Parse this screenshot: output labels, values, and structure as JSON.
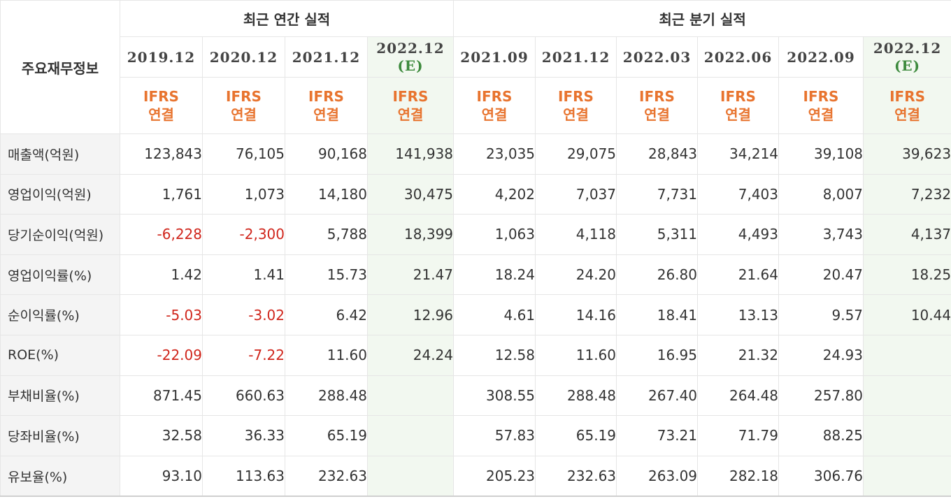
{
  "table": {
    "row_header_label": "주요재무정보",
    "groups": [
      {
        "label": "최근 연간 실적",
        "span": 4
      },
      {
        "label": "최근 분기 실적",
        "span": 6
      }
    ],
    "periods": [
      {
        "date": "2019.12",
        "estimate": false
      },
      {
        "date": "2020.12",
        "estimate": false
      },
      {
        "date": "2021.12",
        "estimate": false
      },
      {
        "date": "2022.12",
        "estimate": true,
        "estimate_mark": "(E)"
      },
      {
        "date": "2021.09",
        "estimate": false
      },
      {
        "date": "2021.12",
        "estimate": false
      },
      {
        "date": "2022.03",
        "estimate": false
      },
      {
        "date": "2022.06",
        "estimate": false
      },
      {
        "date": "2022.09",
        "estimate": false
      },
      {
        "date": "2022.12",
        "estimate": true,
        "estimate_mark": "(E)"
      }
    ],
    "basis": {
      "line1": "IFRS",
      "line2": "연결"
    },
    "rows": [
      {
        "label": "매출액(억원)",
        "values": [
          "123,843",
          "76,105",
          "90,168",
          "141,938",
          "23,035",
          "29,075",
          "28,843",
          "34,214",
          "39,108",
          "39,623"
        ]
      },
      {
        "label": "영업이익(억원)",
        "values": [
          "1,761",
          "1,073",
          "14,180",
          "30,475",
          "4,202",
          "7,037",
          "7,731",
          "7,403",
          "8,007",
          "7,232"
        ]
      },
      {
        "label": "당기순이익(억원)",
        "values": [
          "-6,228",
          "-2,300",
          "5,788",
          "18,399",
          "1,063",
          "4,118",
          "5,311",
          "4,493",
          "3,743",
          "4,137"
        ]
      },
      {
        "label": "영업이익률(%)",
        "values": [
          "1.42",
          "1.41",
          "15.73",
          "21.47",
          "18.24",
          "24.20",
          "26.80",
          "21.64",
          "20.47",
          "18.25"
        ]
      },
      {
        "label": "순이익률(%)",
        "values": [
          "-5.03",
          "-3.02",
          "6.42",
          "12.96",
          "4.61",
          "14.16",
          "18.41",
          "13.13",
          "9.57",
          "10.44"
        ]
      },
      {
        "label": "ROE(%)",
        "values": [
          "-22.09",
          "-7.22",
          "11.60",
          "24.24",
          "12.58",
          "11.60",
          "16.95",
          "21.32",
          "24.93",
          ""
        ]
      },
      {
        "label": "부채비율(%)",
        "values": [
          "871.45",
          "660.63",
          "288.48",
          "",
          "308.55",
          "288.48",
          "267.40",
          "264.48",
          "257.80",
          ""
        ]
      },
      {
        "label": "당좌비율(%)",
        "values": [
          "32.58",
          "36.33",
          "65.19",
          "",
          "57.83",
          "65.19",
          "73.21",
          "71.79",
          "88.25",
          ""
        ]
      },
      {
        "label": "유보율(%)",
        "values": [
          "93.10",
          "113.63",
          "232.63",
          "",
          "205.23",
          "232.63",
          "263.09",
          "282.18",
          "306.76",
          ""
        ]
      }
    ],
    "colors": {
      "negative": "#d0261c",
      "basis": "#e8742f",
      "estimate_bg": "#f2f8f0",
      "estimate_mark": "#3d8a3d",
      "label_bg": "#f4f4f4"
    }
  }
}
